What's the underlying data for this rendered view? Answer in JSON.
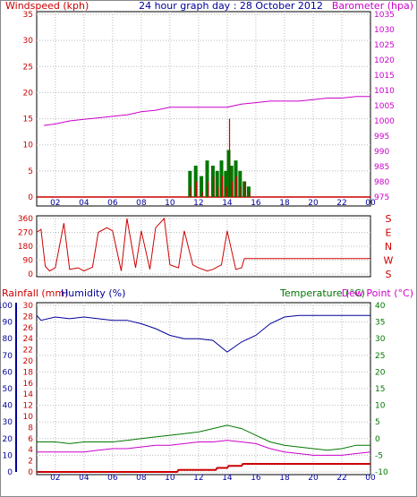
{
  "header": {
    "left_label": "Windspeed (kph)",
    "title": "24 hour graph day : 28 October 2012",
    "right_label": "Barometer (hpa)"
  },
  "colors": {
    "windspeed": "#cc0000",
    "gust": "#007700",
    "barometer": "#cc00cc",
    "direction": "#cc0000",
    "rainfall": "#cc0000",
    "humidity": "#000099",
    "temperature": "#007700",
    "dewpoint": "#cc00cc",
    "axis_left": "#cc0000",
    "axis_right": "#cc00cc",
    "axis_humidity": "#000099",
    "grid": "#bbbbbb"
  },
  "chart_data": [
    {
      "type": "line",
      "title": "24 hour graph day : 28 October 2012",
      "ylabel": "Windspeed (kph)",
      "y2label": "Barometer (hpa)",
      "ylim": [
        0,
        35
      ],
      "y2lim": [
        975,
        1035
      ],
      "x_ticks": [
        "02",
        "04",
        "06",
        "08",
        "10",
        "12",
        "14",
        "16",
        "18",
        "20",
        "22",
        "00"
      ],
      "y_ticks": [
        "0",
        "5",
        "10",
        "15",
        "20",
        "25",
        "30",
        "35"
      ],
      "y2_ticks": [
        "975",
        "980",
        "985",
        "990",
        "995",
        "1000",
        "1005",
        "1010",
        "1015",
        "1020",
        "1025",
        "1030",
        "1035"
      ],
      "grid": true,
      "series": [
        {
          "name": "Barometer",
          "x": [
            1.2,
            2,
            3,
            4,
            5,
            6,
            7,
            8,
            9,
            10,
            11,
            12,
            13,
            14,
            15,
            16,
            17,
            18,
            19,
            20,
            21,
            22,
            23,
            24
          ],
          "values": [
            998.5,
            999,
            1000,
            1000.5,
            1001,
            1001.5,
            1002,
            1003,
            1003.5,
            1004.5,
            1004.5,
            1004.5,
            1004.5,
            1004.5,
            1005.5,
            1006,
            1006.5,
            1006.5,
            1006.5,
            1007,
            1007.5,
            1007.5,
            1008,
            1008
          ]
        },
        {
          "name": "Windspeed",
          "x": [
            11.4,
            11.8,
            12.2,
            12.6,
            13,
            13.3,
            13.6,
            13.9,
            14.1,
            14.3,
            14.6,
            14.9,
            15.2,
            15.5
          ],
          "values": [
            2,
            3,
            1,
            3,
            4,
            2,
            4,
            2,
            15,
            3,
            4,
            2,
            3,
            1
          ]
        },
        {
          "name": "Gust",
          "x": [
            11.4,
            11.8,
            12.2,
            12.6,
            13,
            13.3,
            13.6,
            13.9,
            14.1,
            14.3,
            14.6,
            14.9,
            15.2,
            15.5
          ],
          "values": [
            5,
            6,
            4,
            7,
            6,
            5,
            7,
            5,
            9,
            6,
            7,
            5,
            3,
            2
          ]
        }
      ]
    },
    {
      "type": "line",
      "title": "",
      "ylabel": "",
      "y2label": "",
      "ylim": [
        0,
        360
      ],
      "x_ticks": [
        "02",
        "04",
        "06",
        "08",
        "10",
        "12",
        "14",
        "16",
        "18",
        "20",
        "22",
        "00"
      ],
      "y_ticks": [
        "0",
        "90",
        "180",
        "270",
        "360"
      ],
      "y2_ticks": [
        "S",
        "E",
        "N",
        "W",
        "S"
      ],
      "grid": true,
      "series": [
        {
          "name": "Wind direction",
          "x": [
            0.7,
            1,
            1.3,
            1.6,
            2,
            2.6,
            3,
            3.6,
            4,
            4.6,
            5,
            5.6,
            6,
            6.6,
            7,
            7.6,
            8,
            8.6,
            9,
            9.6,
            10,
            10.6,
            11,
            11.6,
            12,
            12.6,
            13,
            13.6,
            14,
            14.6,
            15,
            15.2,
            15.4,
            24
          ],
          "values": [
            270,
            290,
            50,
            20,
            40,
            330,
            30,
            40,
            20,
            45,
            270,
            300,
            280,
            20,
            360,
            40,
            280,
            30,
            300,
            360,
            60,
            40,
            280,
            60,
            40,
            20,
            30,
            60,
            280,
            30,
            40,
            100,
            100,
            100
          ]
        }
      ]
    },
    {
      "type": "line",
      "title": "",
      "ylabel": "Rainfall (mm)",
      "y2label": "Temperature (°C)",
      "ylim": [
        0,
        100
      ],
      "y2lim": [
        -10,
        40
      ],
      "x_ticks": [
        "02",
        "04",
        "06",
        "08",
        "10",
        "12",
        "14",
        "16",
        "18",
        "20",
        "22",
        "00"
      ],
      "y_ticks": [
        "0",
        "2",
        "4",
        "6",
        "8",
        "10",
        "12",
        "14",
        "16",
        "18",
        "20",
        "22",
        "24",
        "26",
        "28",
        "30"
      ],
      "y_ticks_humidity": [
        "0",
        "10",
        "20",
        "30",
        "40",
        "50",
        "60",
        "70",
        "80",
        "90",
        "100"
      ],
      "y2_ticks": [
        "-10",
        "-5",
        "0",
        "5",
        "10",
        "15",
        "20",
        "25",
        "30",
        "35",
        "40"
      ],
      "grid": true,
      "legend": [
        "Rainfall (mm)",
        "Humidity (%)",
        "Temperature (°C)",
        "Dew Point (°C)"
      ],
      "series": [
        {
          "name": "Humidity",
          "x": [
            0.7,
            1,
            2,
            3,
            4,
            5,
            6,
            7,
            8,
            9,
            10,
            11,
            12,
            13,
            14,
            14.5,
            15,
            16,
            17,
            18,
            19,
            20,
            21,
            22,
            23,
            24
          ],
          "values": [
            94,
            91,
            93,
            92,
            93,
            92,
            91,
            91,
            89,
            86,
            82,
            80,
            80,
            79,
            72,
            75,
            78,
            82,
            89,
            93,
            94,
            94,
            94,
            94,
            94,
            94
          ]
        },
        {
          "name": "Temperature",
          "x": [
            0.7,
            1,
            2,
            3,
            4,
            5,
            6,
            7,
            8,
            9,
            10,
            11,
            12,
            13,
            14,
            15,
            16,
            17,
            18,
            19,
            20,
            21,
            22,
            23,
            24
          ],
          "values": [
            -1,
            -1,
            -1,
            -1.5,
            -1,
            -1,
            -1,
            -0.5,
            0,
            0.5,
            1,
            1.5,
            2,
            3,
            4,
            3,
            1,
            -1,
            -2,
            -2.5,
            -3,
            -3.5,
            -3,
            -2,
            -2
          ]
        },
        {
          "name": "Dew Point",
          "x": [
            0.7,
            1,
            2,
            3,
            4,
            5,
            6,
            7,
            8,
            9,
            10,
            11,
            12,
            13,
            14,
            15,
            16,
            17,
            18,
            19,
            20,
            21,
            22,
            23,
            24
          ],
          "values": [
            -4,
            -4,
            -4,
            -4,
            -4,
            -3.5,
            -3,
            -3,
            -2.5,
            -2,
            -2,
            -1.5,
            -1,
            -1,
            -0.5,
            -1,
            -1.5,
            -3,
            -4,
            -4.5,
            -5,
            -5,
            -5,
            -4.5,
            -4
          ]
        },
        {
          "name": "Rainfall",
          "x": [
            0.7,
            10.5,
            10.6,
            13.2,
            13.3,
            14,
            14.1,
            15,
            15.1,
            24
          ],
          "values": [
            0,
            0,
            0.5,
            0.5,
            1,
            1,
            1.5,
            1.5,
            2,
            2
          ]
        }
      ]
    }
  ],
  "labels": {
    "rainfall": "Rainfall (mm)",
    "humidity": "Humidity (%)",
    "temperature": "Temperature (°C)",
    "dewpoint": "Dew Point (°C)"
  }
}
